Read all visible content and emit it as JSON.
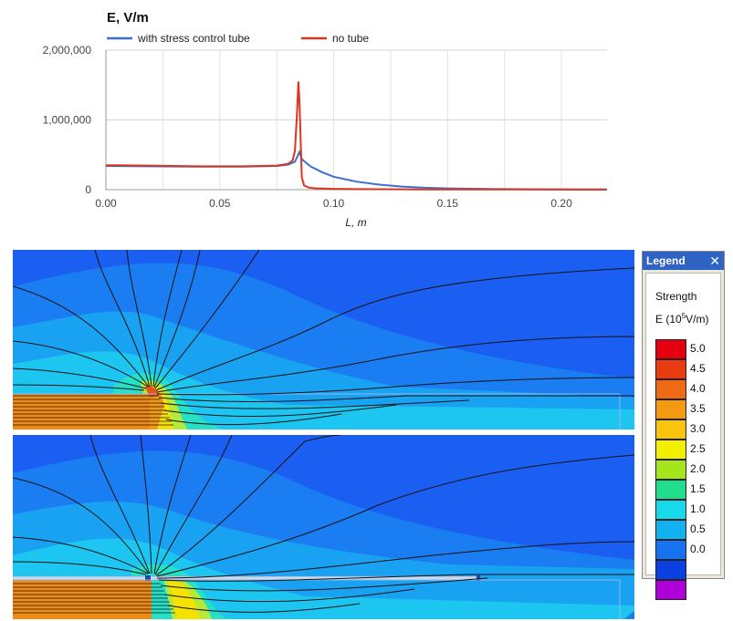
{
  "chart_data": {
    "type": "line",
    "title": "E, V/m",
    "xlabel": "L, m",
    "ylabel": "",
    "xlim": [
      0,
      0.22
    ],
    "ylim": [
      0,
      2000000
    ],
    "yticks": [
      0,
      1000000,
      2000000
    ],
    "ytick_labels": [
      "0",
      "1,000,000",
      "2,000,000"
    ],
    "xticks": [
      0,
      0.05,
      0.1,
      0.15,
      0.2
    ],
    "xtick_labels": [
      "0.00",
      "0.05",
      "0.10",
      "0.15",
      "0.20"
    ],
    "grid": true,
    "legend_position": "top",
    "series": [
      {
        "name": "with stress control tube",
        "color": "#3b6fd0",
        "x": [
          0,
          0.02,
          0.04,
          0.06,
          0.075,
          0.08,
          0.083,
          0.084,
          0.085,
          0.086,
          0.088,
          0.09,
          0.095,
          0.1,
          0.11,
          0.12,
          0.13,
          0.14,
          0.15,
          0.17,
          0.19,
          0.22
        ],
        "y": [
          340000,
          335000,
          330000,
          330000,
          340000,
          360000,
          400000,
          470000,
          540000,
          440000,
          380000,
          330000,
          250000,
          185000,
          115000,
          72000,
          45000,
          28000,
          18000,
          9000,
          5000,
          2000
        ]
      },
      {
        "name": "no tube",
        "color": "#d9361b",
        "x": [
          0,
          0.02,
          0.04,
          0.06,
          0.075,
          0.08,
          0.082,
          0.083,
          0.084,
          0.0845,
          0.085,
          0.0855,
          0.086,
          0.087,
          0.089,
          0.092,
          0.1,
          0.11,
          0.12,
          0.14,
          0.16,
          0.19,
          0.22
        ],
        "y": [
          350000,
          345000,
          335000,
          335000,
          345000,
          370000,
          420000,
          560000,
          1150000,
          1550000,
          1250000,
          700000,
          180000,
          60000,
          30000,
          20000,
          12000,
          8000,
          6000,
          4000,
          3000,
          2000,
          1000
        ]
      }
    ]
  },
  "legend_panel": {
    "title": "Legend",
    "close_glyph": "✕",
    "heading": "Strength",
    "units_prefix": "E (10",
    "units_exp": "5",
    "units_suffix": "V/m)",
    "levels": [
      {
        "label": "5.0",
        "color": "#e6000f"
      },
      {
        "label": "4.5",
        "color": "#ea3b10"
      },
      {
        "label": "4.0",
        "color": "#ef6a12"
      },
      {
        "label": "3.5",
        "color": "#f59a10"
      },
      {
        "label": "3.0",
        "color": "#fbc40c"
      },
      {
        "label": "2.5",
        "color": "#f3ef00"
      },
      {
        "label": "2.0",
        "color": "#a6e41b"
      },
      {
        "label": "1.5",
        "color": "#22dd8e"
      },
      {
        "label": "1.0",
        "color": "#18d9e9"
      },
      {
        "label": "0.5",
        "color": "#12b1f0"
      },
      {
        "label": "0.0",
        "color": "#1573ef"
      },
      {
        "label": "",
        "color": "#0a3fe0"
      },
      {
        "label": "",
        "color": "#b000d8"
      }
    ]
  },
  "field_colors": {
    "background": "#1a5ff1",
    "band1": "#1b7df2",
    "band2": "#1aa2f2",
    "band3": "#1dc6f0",
    "band4": "#27e0c8",
    "band5": "#b6e93a",
    "band6": "#f5e200",
    "band7": "#f59b12",
    "band8": "#e9531a",
    "conductor": "#ef8a14",
    "fieldline": "#111111",
    "divider": "#ffffff"
  }
}
